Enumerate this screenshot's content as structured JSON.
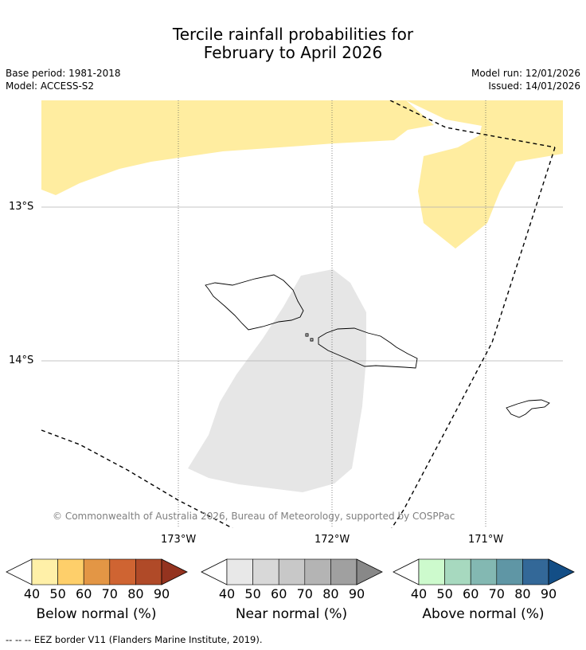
{
  "title_line1": "Tercile rainfall probabilities for",
  "title_line2": "February to April 2026",
  "base_period": "Base period: 1981-2018",
  "model": "Model: ACCESS-S2",
  "model_run": "Model run: 12/01/2026",
  "issued": "Issued: 14/01/2026",
  "lat_ticks": [
    "13°S",
    "14°S"
  ],
  "lon_ticks": [
    "173°W",
    "172°W",
    "171°W"
  ],
  "credit": "© Commonwealth of Australia 2026, Bureau of Meteorology, supported by COSPPac",
  "colorbars": [
    {
      "label": "Below normal (%)",
      "ticks": [
        "40",
        "50",
        "60",
        "70",
        "80",
        "90"
      ],
      "colors": [
        "#fff0a8",
        "#fecf6a",
        "#e39645",
        "#cf6432",
        "#b04a28",
        "#94331f"
      ]
    },
    {
      "label": "Near normal (%)",
      "ticks": [
        "40",
        "50",
        "60",
        "70",
        "80",
        "90"
      ],
      "colors": [
        "#e8e8e8",
        "#d8d8d8",
        "#c8c8c8",
        "#b4b4b4",
        "#a0a0a0",
        "#888888"
      ]
    },
    {
      "label": "Above normal (%)",
      "ticks": [
        "40",
        "50",
        "60",
        "70",
        "80",
        "90"
      ],
      "colors": [
        "#cdfacd",
        "#a7d9bf",
        "#83b8b2",
        "#5f96a5",
        "#336898",
        "#134e86"
      ]
    }
  ],
  "footnote": "--  --  -- EEZ border V11 (Flanders Marine Institute, 2019).",
  "colors": {
    "below": "#ffeda0",
    "near": "#e6e6e6"
  }
}
